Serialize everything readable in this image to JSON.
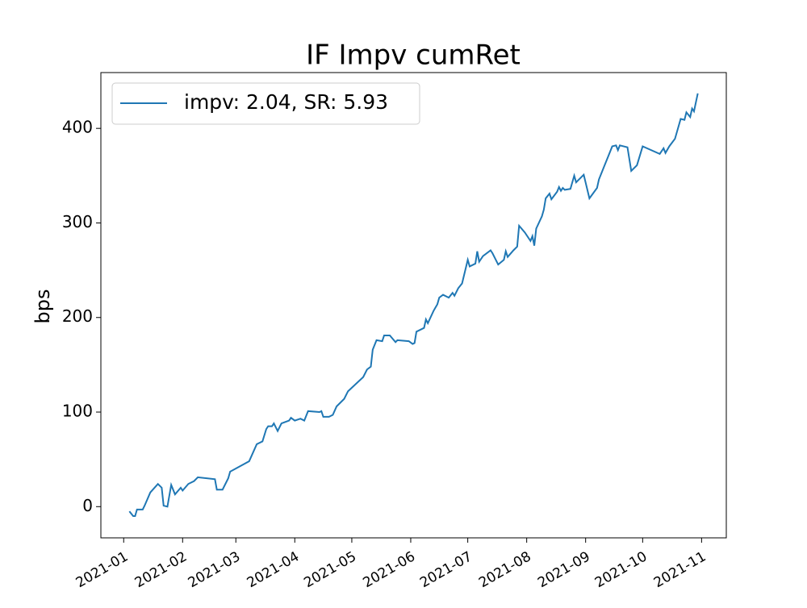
{
  "chart_data": {
    "type": "line",
    "title": "IF Impv cumRet",
    "y_label": "bps",
    "legend": "upper left",
    "xlim": [
      -12,
      317
    ],
    "ylim": [
      -33,
      459
    ],
    "xticks": [
      {
        "value": 0,
        "label": "2021-01"
      },
      {
        "value": 31,
        "label": "2021-02"
      },
      {
        "value": 59,
        "label": "2021-03"
      },
      {
        "value": 90,
        "label": "2021-04"
      },
      {
        "value": 120,
        "label": "2021-05"
      },
      {
        "value": 151,
        "label": "2021-06"
      },
      {
        "value": 181,
        "label": "2021-07"
      },
      {
        "value": 212,
        "label": "2021-08"
      },
      {
        "value": 243,
        "label": "2021-09"
      },
      {
        "value": 273,
        "label": "2021-10"
      },
      {
        "value": 304,
        "label": "2021-11"
      }
    ],
    "yticks": [
      0,
      100,
      200,
      300,
      400
    ],
    "x": [
      3,
      5,
      6,
      7,
      10,
      11,
      14,
      18,
      20,
      21,
      23,
      25,
      27,
      30,
      31,
      34,
      37,
      39,
      48,
      49,
      52,
      55,
      56,
      66,
      68,
      70,
      73,
      75,
      76,
      78,
      79,
      81,
      83,
      87,
      88,
      90,
      93,
      95,
      97,
      103,
      104,
      105,
      108,
      110,
      112,
      116,
      118,
      126,
      128,
      130,
      131,
      133,
      136,
      137,
      140,
      143,
      144,
      150,
      152,
      153,
      154,
      158,
      159,
      160,
      163,
      165,
      166,
      168,
      171,
      173,
      174,
      176,
      178,
      181,
      182,
      185,
      186,
      187,
      189,
      193,
      194,
      197,
      200,
      201,
      202,
      205,
      207,
      208,
      211,
      214,
      215,
      216,
      217,
      220,
      221,
      222,
      224,
      225,
      228,
      229,
      230,
      231,
      232,
      235,
      237,
      238,
      242,
      245,
      249,
      250,
      251,
      253,
      255,
      257,
      259,
      260,
      261,
      265,
      267,
      270,
      273,
      282,
      284,
      285,
      287,
      290,
      293,
      295,
      296,
      298,
      299,
      300,
      302
    ],
    "series": [
      {
        "name": "impv: 2.04, SR: 5.93",
        "color": "#1f77b4",
        "values": [
          -5,
          -10,
          -10,
          -3,
          -3,
          1,
          15,
          24,
          20,
          1,
          0,
          23,
          13,
          20,
          17,
          24,
          27,
          31,
          29,
          18,
          18,
          30,
          37,
          48,
          57,
          66,
          69,
          82,
          85,
          85,
          88,
          80,
          88,
          91,
          94,
          91,
          93,
          91,
          101,
          100,
          101,
          95,
          95,
          97,
          106,
          114,
          122,
          137,
          145,
          148,
          166,
          176,
          175,
          181,
          181,
          174,
          176,
          175,
          172,
          173,
          185,
          189,
          198,
          194,
          207,
          214,
          221,
          224,
          221,
          226,
          223,
          231,
          236,
          261,
          254,
          257,
          270,
          259,
          265,
          271,
          268,
          256,
          261,
          270,
          264,
          271,
          275,
          297,
          290,
          281,
          286,
          276,
          294,
          307,
          314,
          326,
          331,
          325,
          333,
          338,
          334,
          337,
          335,
          336,
          350,
          343,
          351,
          326,
          337,
          346,
          351,
          361,
          371,
          381,
          382,
          377,
          382,
          380,
          355,
          361,
          381,
          373,
          379,
          374,
          381,
          389,
          410,
          409,
          417,
          412,
          421,
          418,
          437
        ]
      }
    ]
  }
}
